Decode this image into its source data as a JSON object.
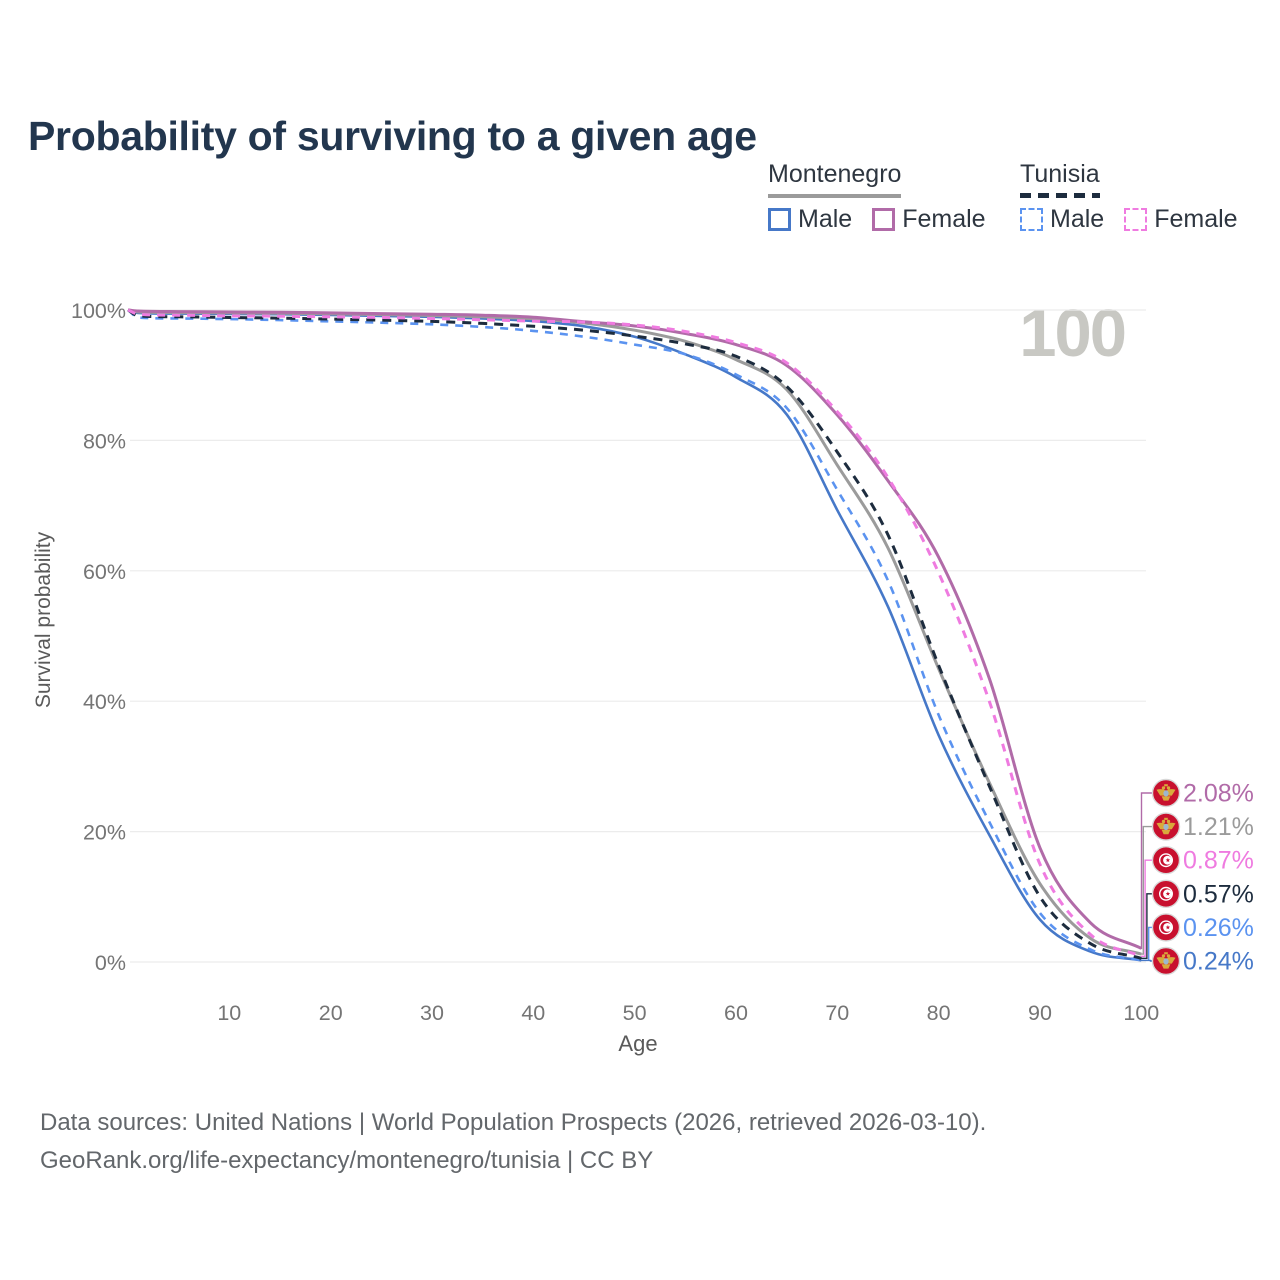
{
  "title": "Probability of surviving to a given age",
  "watermark": "100",
  "legend": {
    "groups": [
      {
        "name": "Montenegro",
        "items": [
          {
            "label": "Male",
            "series": "mne-male"
          },
          {
            "label": "Female",
            "series": "mne-female"
          }
        ]
      },
      {
        "name": "Tunisia",
        "items": [
          {
            "label": "Male",
            "series": "tun-male"
          },
          {
            "label": "Female",
            "series": "tun-female"
          }
        ]
      }
    ]
  },
  "colors": {
    "title": "#22364e",
    "grid": "#ececec",
    "axis_text": "#757575",
    "axis_title": "#5a5a5a",
    "watermark": "#c8c8c3",
    "footer": "#63676b",
    "legend_text": "#2e3640",
    "montenegro_rule": "#9b9b9b",
    "tunisia_rule": "#1d2c3e",
    "flag_red": "#c8102e",
    "flag_gold": "#d9a93c",
    "flag_shield": "#9db6d0",
    "flag_ring": "#d8d8d8"
  },
  "chart_data": {
    "type": "line",
    "title": "Probability of surviving to a given age",
    "xlabel": "Age",
    "ylabel": "Survival probability",
    "xlim": [
      0,
      100
    ],
    "ylim": [
      0,
      100
    ],
    "grid": true,
    "legend_position": "top-right",
    "x_ticks": [
      10,
      20,
      30,
      40,
      50,
      60,
      70,
      80,
      90,
      100
    ],
    "y_ticks": [
      {
        "value": 0,
        "label": "0%"
      },
      {
        "value": 20,
        "label": "20%"
      },
      {
        "value": 40,
        "label": "40%"
      },
      {
        "value": 60,
        "label": "60%"
      },
      {
        "value": 80,
        "label": "80%"
      },
      {
        "value": 100,
        "label": "100%"
      }
    ],
    "series": [
      {
        "id": "mne-female",
        "name": "Montenegro Female",
        "country": "Montenegro",
        "sex": "Female",
        "line": "solid",
        "color": "#b16ba8",
        "flag": "me",
        "end_label": "2.08%",
        "end_value": 2.08,
        "points": [
          [
            0,
            100
          ],
          [
            1,
            99.85
          ],
          [
            5,
            99.75
          ],
          [
            10,
            99.7
          ],
          [
            15,
            99.65
          ],
          [
            20,
            99.55
          ],
          [
            25,
            99.45
          ],
          [
            30,
            99.35
          ],
          [
            35,
            99.2
          ],
          [
            40,
            98.9
          ],
          [
            45,
            98.2
          ],
          [
            50,
            97.55
          ],
          [
            55,
            96.4
          ],
          [
            60,
            94.7
          ],
          [
            65,
            91.5
          ],
          [
            70,
            83.9
          ],
          [
            75,
            73.8
          ],
          [
            80,
            62.1
          ],
          [
            85,
            43.5
          ],
          [
            90,
            17.5
          ],
          [
            95,
            6.0
          ],
          [
            100,
            2.08
          ]
        ]
      },
      {
        "id": "mne-total",
        "name": "Montenegro Both sexes",
        "country": "Montenegro",
        "sex": "Both",
        "line": "solid",
        "color": "#9b9b9b",
        "flag": "me",
        "end_label": "1.21%",
        "end_value": 1.21,
        "points": [
          [
            0,
            100
          ],
          [
            1,
            99.7
          ],
          [
            5,
            99.6
          ],
          [
            10,
            99.55
          ],
          [
            15,
            99.5
          ],
          [
            20,
            99.4
          ],
          [
            25,
            99.3
          ],
          [
            30,
            99.15
          ],
          [
            35,
            98.95
          ],
          [
            40,
            98.65
          ],
          [
            45,
            98.0
          ],
          [
            50,
            96.9
          ],
          [
            55,
            95.2
          ],
          [
            60,
            92.4
          ],
          [
            65,
            87.8
          ],
          [
            70,
            76.2
          ],
          [
            75,
            63.5
          ],
          [
            80,
            45.0
          ],
          [
            85,
            27.5
          ],
          [
            90,
            12.0
          ],
          [
            95,
            3.6
          ],
          [
            100,
            1.21
          ]
        ]
      },
      {
        "id": "tun-female",
        "name": "Tunisia Female",
        "country": "Tunisia",
        "sex": "Female",
        "line": "dashed",
        "color": "#ef7be0",
        "flag": "tn",
        "end_label": "0.87%",
        "end_value": 0.87,
        "points": [
          [
            0,
            100
          ],
          [
            1,
            99.35
          ],
          [
            5,
            99.2
          ],
          [
            10,
            99.1
          ],
          [
            15,
            99.05
          ],
          [
            20,
            98.95
          ],
          [
            25,
            98.85
          ],
          [
            30,
            98.7
          ],
          [
            35,
            98.5
          ],
          [
            40,
            98.3
          ],
          [
            45,
            98.15
          ],
          [
            50,
            97.7
          ],
          [
            55,
            96.7
          ],
          [
            60,
            95.0
          ],
          [
            65,
            91.9
          ],
          [
            70,
            84.4
          ],
          [
            75,
            74.3
          ],
          [
            80,
            59.7
          ],
          [
            85,
            40.0
          ],
          [
            90,
            15.0
          ],
          [
            95,
            4.2
          ],
          [
            100,
            0.87
          ]
        ]
      },
      {
        "id": "tun-total",
        "name": "Tunisia Both sexes",
        "country": "Tunisia",
        "sex": "Both",
        "line": "dashed",
        "color": "#1d2c3e",
        "flag": "tn",
        "end_label": "0.57%",
        "end_value": 0.57,
        "points": [
          [
            0,
            100
          ],
          [
            1,
            99.1
          ],
          [
            5,
            98.95
          ],
          [
            10,
            98.85
          ],
          [
            15,
            98.75
          ],
          [
            20,
            98.6
          ],
          [
            25,
            98.45
          ],
          [
            30,
            98.25
          ],
          [
            35,
            97.95
          ],
          [
            40,
            97.5
          ],
          [
            45,
            96.9
          ],
          [
            50,
            96.0
          ],
          [
            55,
            94.8
          ],
          [
            60,
            92.9
          ],
          [
            65,
            88.3
          ],
          [
            70,
            78.2
          ],
          [
            75,
            65.5
          ],
          [
            80,
            45.5
          ],
          [
            85,
            27.0
          ],
          [
            90,
            10.0
          ],
          [
            95,
            2.8
          ],
          [
            100,
            0.57
          ]
        ]
      },
      {
        "id": "tun-male",
        "name": "Tunisia Male",
        "country": "Tunisia",
        "sex": "Male",
        "line": "dashed",
        "color": "#5b93f0",
        "flag": "tn",
        "end_label": "0.26%",
        "end_value": 0.26,
        "points": [
          [
            0,
            100
          ],
          [
            1,
            98.85
          ],
          [
            5,
            98.7
          ],
          [
            10,
            98.6
          ],
          [
            15,
            98.45
          ],
          [
            20,
            98.25
          ],
          [
            25,
            98.05
          ],
          [
            30,
            97.8
          ],
          [
            35,
            97.4
          ],
          [
            40,
            96.8
          ],
          [
            45,
            95.9
          ],
          [
            50,
            94.7
          ],
          [
            55,
            93.2
          ],
          [
            60,
            90.1
          ],
          [
            65,
            85.0
          ],
          [
            70,
            72.4
          ],
          [
            75,
            58.5
          ],
          [
            80,
            37.9
          ],
          [
            85,
            21.5
          ],
          [
            90,
            7.5
          ],
          [
            95,
            1.9
          ],
          [
            100,
            0.26
          ]
        ]
      },
      {
        "id": "mne-male",
        "name": "Montenegro Male",
        "country": "Montenegro",
        "sex": "Male",
        "line": "solid",
        "color": "#4678c8",
        "flag": "me",
        "end_label": "0.24%",
        "end_value": 0.24,
        "points": [
          [
            0,
            100
          ],
          [
            1,
            99.55
          ],
          [
            5,
            99.45
          ],
          [
            10,
            99.4
          ],
          [
            15,
            99.35
          ],
          [
            20,
            99.25
          ],
          [
            25,
            99.1
          ],
          [
            30,
            98.95
          ],
          [
            35,
            98.7
          ],
          [
            40,
            98.3
          ],
          [
            45,
            97.5
          ],
          [
            50,
            95.9
          ],
          [
            55,
            93.2
          ],
          [
            60,
            89.7
          ],
          [
            65,
            84.0
          ],
          [
            70,
            69.3
          ],
          [
            75,
            54.5
          ],
          [
            80,
            34.8
          ],
          [
            85,
            19.5
          ],
          [
            90,
            6.5
          ],
          [
            95,
            1.6
          ],
          [
            100,
            0.24
          ]
        ]
      }
    ]
  },
  "footer": {
    "line1": "Data sources: United Nations | World Population Prospects (2026, retrieved 2026-03-10).",
    "line2": "GeoRank.org/life-expectancy/montenegro/tunisia | CC BY"
  }
}
